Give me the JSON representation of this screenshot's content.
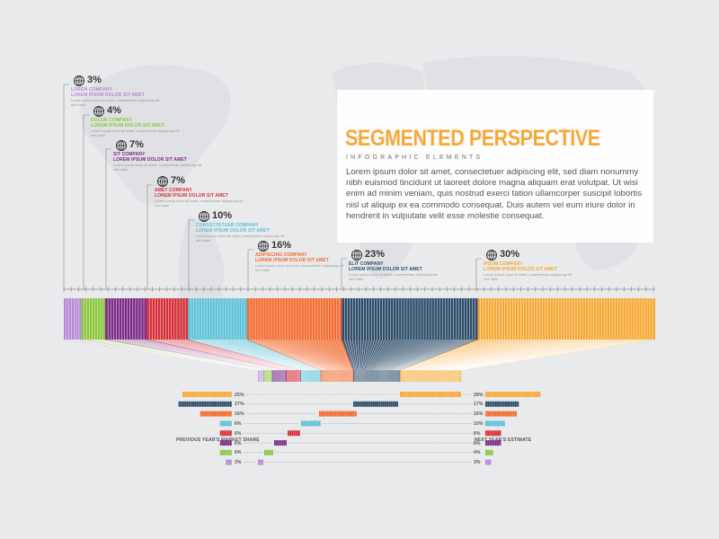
{
  "header": {
    "title": "SEGMENTED PERSPECTIVE",
    "subtitle": "INFOGRAPHIC ELEMENTS",
    "paragraph": "Lorem ipsum dolor sit amet, consectetuer adipiscing elit, sed diam nonummy nibh euismod tincidunt ut laoreet dolore magna aliquam erat volutpat. Ut wisi enim ad minim veniam, quis nostrud exerci tation ullamcorper suscipit lobortis nisl ut aliquip ex ea commodo consequat. Duis autem vel eum iriure dolor in hendrerit in vulputate velit esse molestie consequat."
  },
  "segments": [
    {
      "pct": "3%",
      "name": "LOREM COMPANY",
      "sub": "LOREM IPSUM DOLOR SIT AMET",
      "color": "#b48ad6",
      "desc": "Lorem ipsum dolor sit amet, consectetuer adipiscing elit sed diam"
    },
    {
      "pct": "4%",
      "name": "DOLOR COMPANY",
      "sub": "LOREM IPSUM DOLOR SIT AMET",
      "color": "#8cc63f",
      "desc": "Lorem ipsum dolor sit amet, consectetuer adipiscing elit sed diam"
    },
    {
      "pct": "7%",
      "name": "SIT COMPANY",
      "sub": "LOREM IPSUM DOLOR SIT AMET",
      "color": "#7b2d86",
      "desc": "Lorem ipsum dolor sit amet, consectetuer adipiscing elit sed diam"
    },
    {
      "pct": "7%",
      "name": "AMET COMPANY",
      "sub": "LOREM IPSUM DOLOR SIT AMET",
      "color": "#d62f3a",
      "desc": "Lorem ipsum dolor sit amet, consectetuer adipiscing elit sed diam"
    },
    {
      "pct": "10%",
      "name": "CONSECTETUER COMPANY",
      "sub": "LOREM IPSUM DOLOR SIT AMET",
      "color": "#5bc0d6",
      "desc": "Lorem ipsum dolor sit amet, consectetuer adipiscing elit sed diam"
    },
    {
      "pct": "16%",
      "name": "ADIPISCING COMPANY",
      "sub": "LOREM IPSUM DOLOR SIT AMET",
      "color": "#f26a2e",
      "desc": "Lorem ipsum dolor sit amet, consectetuer adipiscing elit sed diam"
    },
    {
      "pct": "23%",
      "name": "ELIT COMPANY",
      "sub": "LOREM IPSUM DOLOR SIT AMET",
      "color": "#2f4e69",
      "desc": "Lorem ipsum dolor sit amet, consectetuer adipiscing elit sed diam"
    },
    {
      "pct": "30%",
      "name": "IPSUM COMPANY",
      "sub": "LOREM IPSUM DOLOR SIT AMET",
      "color": "#f7a836",
      "desc": "Lorem ipsum dolor sit amet, consectetuer adipiscing elit sed diam"
    }
  ],
  "chart_data": {
    "type": "bar",
    "categories": [
      "IPSUM COMPANY",
      "ELIT COMPANY",
      "ADIPISCING COMPANY",
      "CONSECTETUER COMPANY",
      "AMET COMPANY",
      "SIT COMPANY",
      "DOLOR COMPANY",
      "LOREM COMPANY"
    ],
    "series": [
      {
        "name": "PREVIOUS YEAR'S MARKET SHARE",
        "values": [
          25,
          27,
          16,
          6,
          6,
          6,
          6,
          3
        ]
      },
      {
        "name": "NEXT YEAR'S ESTIMATE",
        "values": [
          28,
          17,
          16,
          10,
          8,
          8,
          4,
          3
        ]
      }
    ],
    "left_labels": [
      "25%",
      "27%",
      "16%",
      "6%",
      "6%",
      "6%",
      "6%",
      "3%"
    ],
    "right_labels": [
      "28%",
      "17%",
      "16%",
      "10%",
      "8%",
      "8%",
      "4%",
      "3%"
    ],
    "colors": [
      "#f7a836",
      "#2f4e69",
      "#f26a2e",
      "#5bc0d6",
      "#d62f3a",
      "#7b2d86",
      "#8cc63f",
      "#b48ad6"
    ]
  },
  "footer": {
    "left": "PREVIOUS YEAR'S MARKET SHARE",
    "right": "NEXT YEAR'S ESTIMATE"
  }
}
